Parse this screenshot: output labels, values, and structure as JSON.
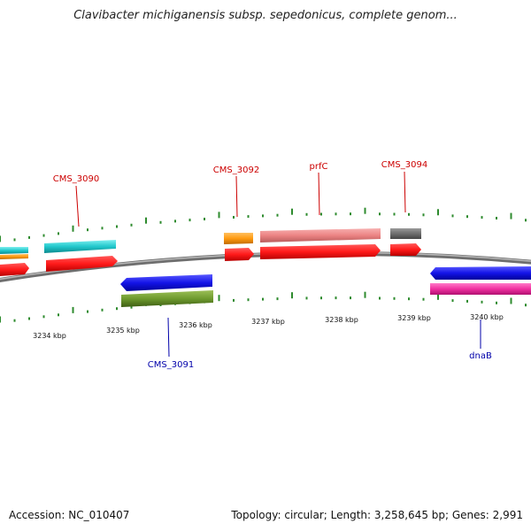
{
  "title": "Clavibacter michiganensis subsp. sepedonicus, complete genom...",
  "footer": {
    "accession": "Accession: NC_010407",
    "summary": "Topology: circular; Length: 3,258,645 bp; Genes: 2,991"
  },
  "colors": {
    "tick": "#2e8b2e",
    "backbone": "#8a8a8a",
    "label_forward": "#cc0000",
    "label_reverse": "#0000aa"
  },
  "scale_labels": [
    "3234 kbp",
    "3235 kbp",
    "3236 kbp",
    "3237 kbp",
    "3238 kbp",
    "3239 kbp",
    "3240 kbp"
  ],
  "gene_labels": {
    "cms3090": "CMS_3090",
    "cms3092": "CMS_3092",
    "prfc": "prfC",
    "cms3094": "CMS_3094",
    "cms3091": "CMS_3091",
    "dnab": "dnaB"
  }
}
